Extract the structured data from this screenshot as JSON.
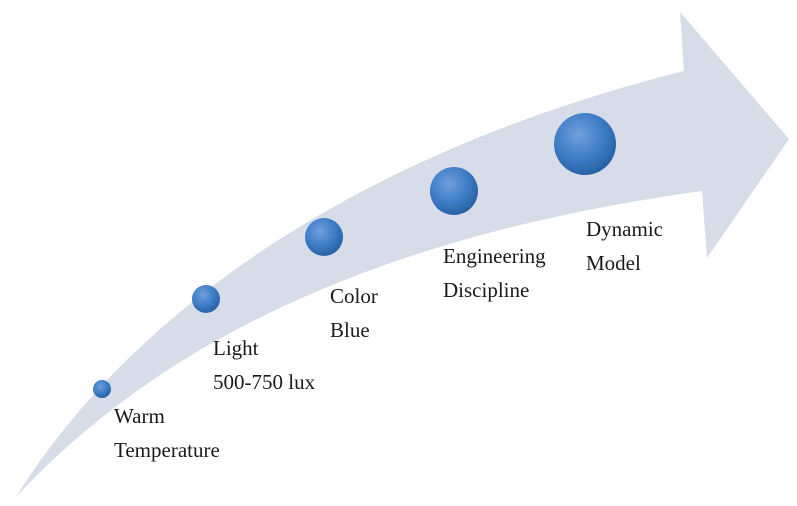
{
  "colors": {
    "arrow_fill": "#d6dce8",
    "dot_light": "#6fa0dc",
    "dot_mid": "#3f7dc7",
    "dot_dark": "#245e9e",
    "text": "#1a1a1a"
  },
  "steps": [
    {
      "line1": "Warm",
      "line2": "Temperature"
    },
    {
      "line1": "Light",
      "line2": "500-750 lux"
    },
    {
      "line1": "Color",
      "line2": "Blue"
    },
    {
      "line1": "Engineering",
      "line2": "Discipline"
    },
    {
      "line1": "Dynamic",
      "line2": "Model"
    }
  ]
}
